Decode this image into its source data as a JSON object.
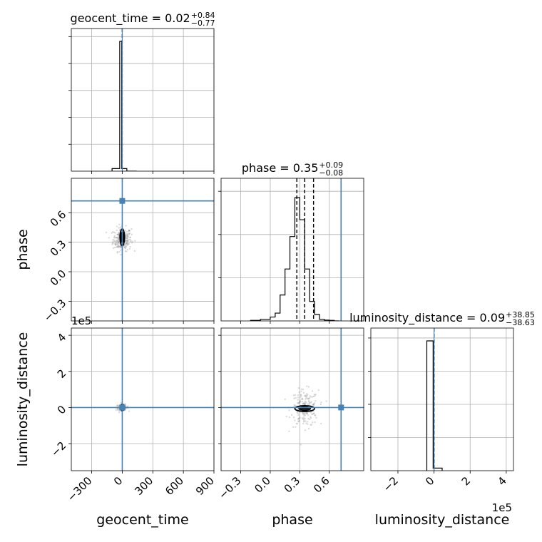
{
  "chart_data": {
    "type": "corner",
    "parameters": [
      "geocent_time",
      "phase",
      "luminosity_distance"
    ],
    "injection": {
      "geocent_time": 0,
      "phase": 0.72,
      "luminosity_distance": 0
    },
    "titles": [
      {
        "param": "geocent_time",
        "prefix": "geocent_time = ",
        "median": "0.02",
        "plus": "+0.84",
        "minus": "−0.77"
      },
      {
        "param": "phase",
        "prefix": "phase = ",
        "median": "0.35",
        "plus": "+0.09",
        "minus": "−0.08"
      },
      {
        "param": "luminosity_distance",
        "prefix": "luminosity_distance = ",
        "median": "0.09",
        "plus": "+38.85",
        "minus": "−38.63"
      }
    ],
    "axes": {
      "geocent_time": {
        "range": [
          -500,
          900
        ],
        "ticks": [
          -300,
          0,
          300,
          600,
          900
        ],
        "tick_labels": [
          "−300",
          "0",
          "300",
          "600",
          "900"
        ],
        "label": "geocent_time"
      },
      "phase": {
        "range": [
          -0.5,
          0.95
        ],
        "ticks": [
          -0.3,
          0,
          0.3,
          0.6
        ],
        "tick_labels": [
          "−0.3",
          "0.0",
          "0.3",
          "0.6"
        ],
        "label": "phase"
      },
      "luminosity_distance": {
        "range": [
          -3.5,
          4.4
        ],
        "ticks": [
          -2,
          0,
          2,
          4
        ],
        "tick_labels": [
          "−2",
          "0",
          "2",
          "4"
        ],
        "label": "luminosity_distance",
        "offset_label": "1e5"
      }
    },
    "grid": true,
    "hist_geocent_time": {
      "bin_edges": [
        -100,
        -25,
        -5,
        45,
        65,
        140
      ],
      "counts": [
        0.02,
        1,
        0.02,
        0,
        0
      ]
    },
    "hist_phase": {
      "bin_edges": [
        -0.2,
        -0.1,
        -0.05,
        0,
        0.05,
        0.1,
        0.15,
        0.2,
        0.25,
        0.3,
        0.35,
        0.4,
        0.45,
        0.5,
        0.55,
        0.6,
        0.65,
        0.7
      ],
      "counts": [
        0.004,
        0.012,
        0.012,
        0.03,
        0.06,
        0.2,
        0.4,
        0.65,
        0.95,
        0.78,
        0.4,
        0.15,
        0.05,
        0.012,
        0.006,
        0.004,
        0
      ],
      "quantiles": [
        0.27,
        0.35,
        0.44
      ]
    },
    "hist_luminosity_distance": {
      "bin_edges": [
        -0.4,
        -0.05,
        0.45
      ],
      "counts": [
        1,
        0.02
      ]
    },
    "quantiles_geocent_time": [
      -0.77,
      0.02,
      0.84
    ],
    "quantiles_luminosity_distance": [
      -38.63,
      0.09,
      38.85
    ],
    "contours": {
      "phase_vs_geocent_time": {
        "center": [
          0,
          0.35
        ],
        "half_width": 22,
        "half_height": 0.085
      },
      "ld_vs_geocent_time": {
        "center": [
          0,
          0
        ],
        "half_width": 16,
        "half_height": 0.18
      },
      "ld_vs_phase": {
        "center": [
          0.35,
          -0.06
        ],
        "half_width": 0.1,
        "half_height": 0.16
      }
    }
  }
}
